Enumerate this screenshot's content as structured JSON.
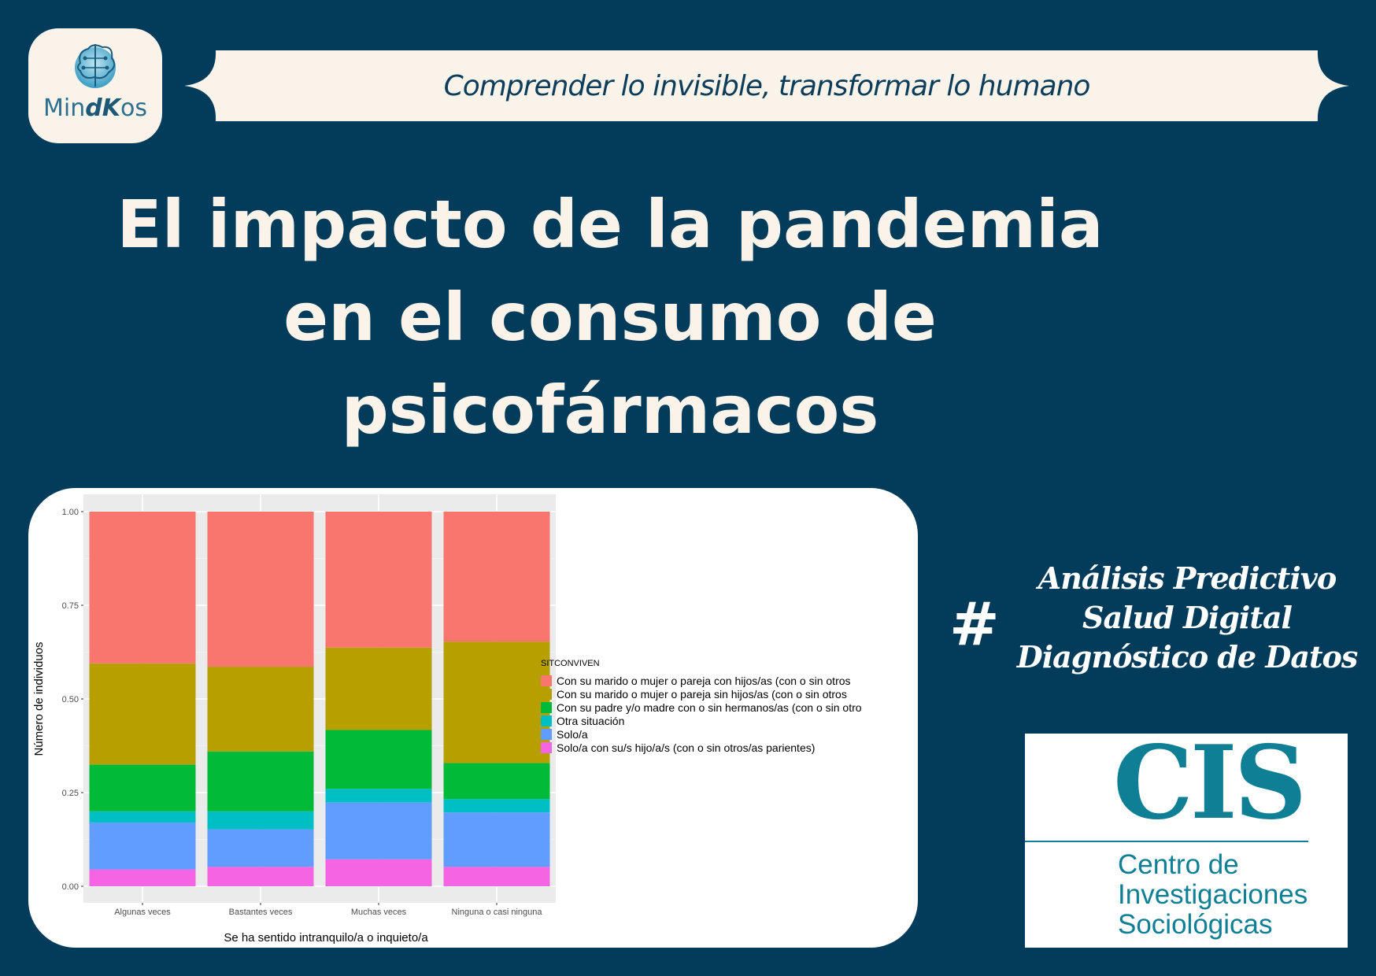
{
  "logo": {
    "text_prefix": "Min",
    "text_em": "dK",
    "text_suffix": "os"
  },
  "banner": {
    "tagline": "Comprender lo invisible, transformar lo humano"
  },
  "headline": {
    "lines": [
      "El impacto de la pandemia",
      "en el consumo de",
      "psicofármacos"
    ]
  },
  "side": {
    "hash": "#",
    "tags": [
      "Análisis Predictivo",
      "Salud Digital",
      "Diagnóstico de Datos"
    ]
  },
  "cis": {
    "letters": "CIS",
    "name_lines": [
      "Centro de",
      "Investigaciones",
      "Sociológicas"
    ]
  },
  "chart_data": {
    "type": "bar",
    "stacked": true,
    "percent": true,
    "xlabel": "Se ha sentido intranquilo/a o inquieto/a",
    "ylabel": "Número de individuos",
    "ylim": [
      0,
      1
    ],
    "yticks": [
      "0.00",
      "0.25",
      "0.50",
      "0.75",
      "1.00"
    ],
    "grid": true,
    "legend_position": "right",
    "legend_title": "SITCONVIVEN",
    "categories": [
      "Algunas veces",
      "Bastantes veces",
      "Muchas veces",
      "Ninguna o casi ninguna"
    ],
    "series": [
      {
        "name": "Solo/a con su/s hijo/a/s (con o sin otros/as parientes)",
        "color": "#f564e3",
        "values": [
          0.045,
          0.052,
          0.072,
          0.052
        ]
      },
      {
        "name": "Solo/a",
        "color": "#619cff",
        "values": [
          0.125,
          0.1,
          0.152,
          0.145
        ]
      },
      {
        "name": "Otra situación",
        "color": "#00bfc4",
        "values": [
          0.03,
          0.048,
          0.036,
          0.036
        ]
      },
      {
        "name": "Con su padre y/o madre con o sin hermanos/as (con o sin otro",
        "color": "#00ba38",
        "values": [
          0.125,
          0.16,
          0.157,
          0.096
        ]
      },
      {
        "name": "Con su marido o mujer o pareja sin hijos/as (con o sin otros",
        "color": "#b79f00",
        "values": [
          0.27,
          0.226,
          0.22,
          0.324
        ]
      },
      {
        "name": "Con su marido o mujer o pareja con hijos/as (con o sin otros",
        "color": "#f8766d",
        "values": [
          0.405,
          0.414,
          0.363,
          0.347
        ]
      }
    ]
  }
}
